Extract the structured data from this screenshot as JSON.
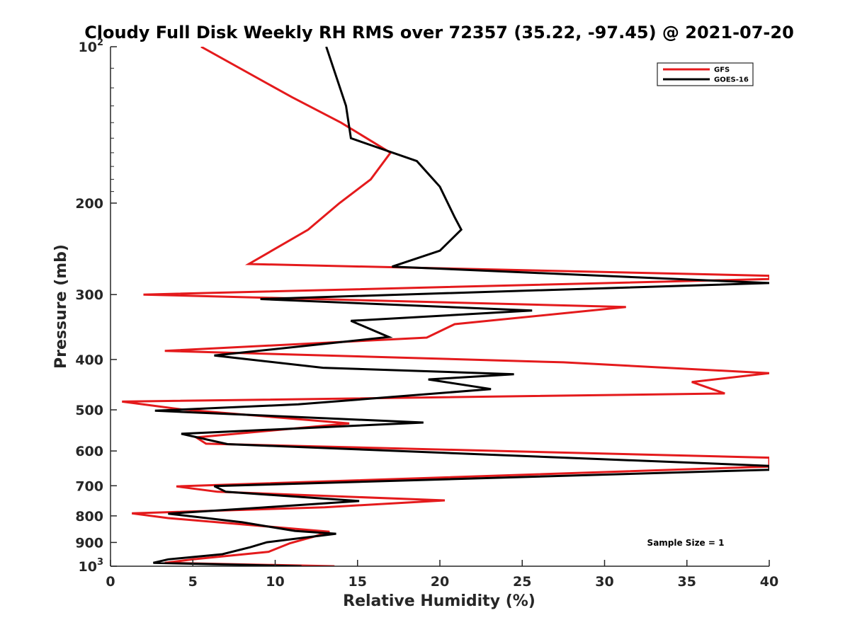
{
  "chart_data": {
    "type": "line",
    "title": "Cloudy Full Disk Weekly RH RMS over 72357 (35.22, -97.45) @ 2021-07-20",
    "xlabel": "Relative Humidity (%)",
    "ylabel": "Pressure (mb)",
    "xlim": [
      0,
      40
    ],
    "ylim": [
      100,
      1000
    ],
    "y_scale": "log",
    "y_reversed": true,
    "x_ticks": [
      {
        "value": 0,
        "label": "0"
      },
      {
        "value": 5,
        "label": "5"
      },
      {
        "value": 10,
        "label": "10"
      },
      {
        "value": 15,
        "label": "15"
      },
      {
        "value": 20,
        "label": "20"
      },
      {
        "value": 25,
        "label": "25"
      },
      {
        "value": 30,
        "label": "30"
      },
      {
        "value": 35,
        "label": "35"
      },
      {
        "value": 40,
        "label": "40"
      }
    ],
    "y_ticks": [
      {
        "value": 100,
        "base": "10",
        "sup": "2"
      },
      {
        "value": 200,
        "label": "200"
      },
      {
        "value": 300,
        "label": "300"
      },
      {
        "value": 400,
        "label": "400"
      },
      {
        "value": 500,
        "label": "500"
      },
      {
        "value": 600,
        "label": "600"
      },
      {
        "value": 700,
        "label": "700"
      },
      {
        "value": 800,
        "label": "800"
      },
      {
        "value": 900,
        "label": "900"
      },
      {
        "value": 1000,
        "base": "10",
        "sup": "3"
      }
    ],
    "legend_position": "top-right",
    "grid": false,
    "series": [
      {
        "name": "GFS",
        "color": "#e41a1c",
        "points": [
          [
            5.5,
            100
          ],
          [
            11.0,
            125
          ],
          [
            14.0,
            140
          ],
          [
            17.0,
            160
          ],
          [
            15.8,
            180
          ],
          [
            13.9,
            200
          ],
          [
            12.0,
            225
          ],
          [
            8.4,
            262
          ],
          [
            40,
            276
          ],
          [
            40,
            280
          ],
          [
            2.0,
            300
          ],
          [
            31.3,
            317
          ],
          [
            20.9,
            342
          ],
          [
            19.2,
            363
          ],
          [
            3.3,
            385
          ],
          [
            27.5,
            405
          ],
          [
            40,
            425
          ],
          [
            35.3,
            442
          ],
          [
            37.3,
            465
          ],
          [
            0.7,
            482
          ],
          [
            4.3,
            499
          ],
          [
            14.5,
            531
          ],
          [
            5.2,
            565
          ],
          [
            5.8,
            581
          ],
          [
            40,
            618
          ],
          [
            40,
            643
          ],
          [
            4.0,
            702
          ],
          [
            6.5,
            719
          ],
          [
            20.3,
            747
          ],
          [
            13.0,
            770
          ],
          [
            1.3,
            791
          ],
          [
            3.5,
            808
          ],
          [
            13.3,
            858
          ],
          [
            12.3,
            878
          ],
          [
            10.9,
            903
          ],
          [
            9.6,
            938
          ],
          [
            5.0,
            970
          ],
          [
            3.3,
            985
          ],
          [
            13.6,
            1000
          ]
        ]
      },
      {
        "name": "GOES-16",
        "color": "#000000",
        "points": [
          [
            13.1,
            100
          ],
          [
            14.3,
            130
          ],
          [
            14.6,
            150
          ],
          [
            18.6,
            166
          ],
          [
            20.0,
            186
          ],
          [
            20.9,
            213
          ],
          [
            21.3,
            225
          ],
          [
            20.0,
            247
          ],
          [
            17.1,
            265
          ],
          [
            40,
            285
          ],
          [
            9.1,
            306
          ],
          [
            25.6,
            322
          ],
          [
            14.6,
            337
          ],
          [
            16.9,
            362
          ],
          [
            6.3,
            393
          ],
          [
            12.9,
            415
          ],
          [
            24.5,
            427
          ],
          [
            19.3,
            437
          ],
          [
            23.1,
            456
          ],
          [
            11.4,
            488
          ],
          [
            2.7,
            502
          ],
          [
            19.0,
            529
          ],
          [
            4.3,
            556
          ],
          [
            7.1,
            582
          ],
          [
            40,
            641
          ],
          [
            40,
            652
          ],
          [
            6.3,
            701
          ],
          [
            7.0,
            719
          ],
          [
            15.1,
            749
          ],
          [
            9.2,
            771
          ],
          [
            3.5,
            792
          ],
          [
            8.0,
            823
          ],
          [
            11.2,
            855
          ],
          [
            13.7,
            866
          ],
          [
            9.5,
            899
          ],
          [
            8.5,
            919
          ],
          [
            6.8,
            948
          ],
          [
            3.5,
            970
          ],
          [
            2.6,
            985
          ],
          [
            11.6,
            1000
          ]
        ]
      }
    ],
    "annotation": "Sample Size = 1"
  }
}
